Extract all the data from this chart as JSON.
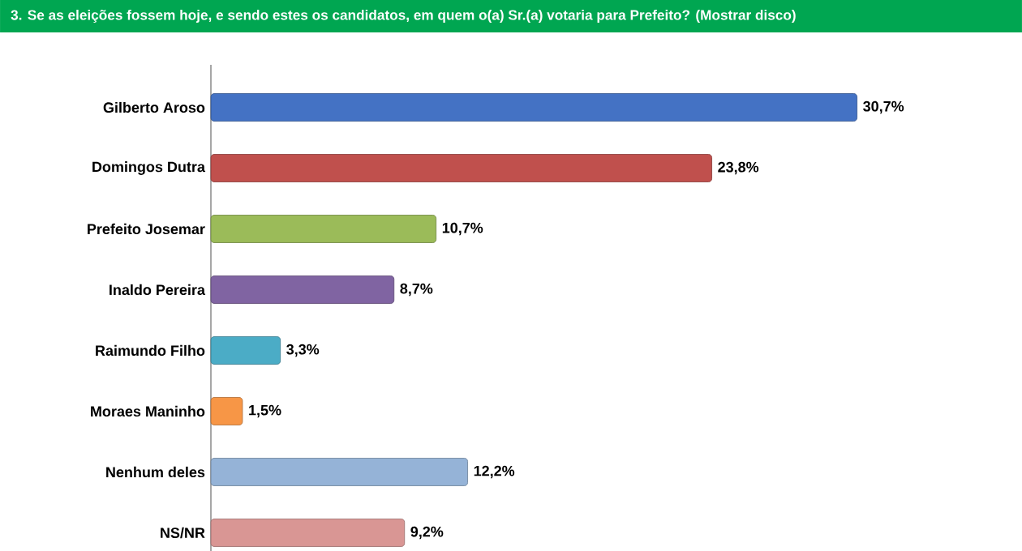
{
  "chart_data": {
    "type": "bar",
    "orientation": "horizontal",
    "title": "3. Se as eleições fossem hoje, e sendo estes os candidatos, em quem o(a) Sr.(a) votaria para Prefeito? (Mostrar disco)",
    "categories": [
      "Gilberto Aroso",
      "Domingos Dutra",
      "Prefeito Josemar",
      "Inaldo Pereira",
      "Raimundo Filho",
      "Moraes Maninho",
      "Nenhum deles",
      "NS/NR"
    ],
    "values": [
      30.7,
      23.8,
      10.7,
      8.7,
      3.3,
      1.5,
      12.2,
      9.2
    ],
    "value_labels": [
      "30,7%",
      "23,8%",
      "10,7%",
      "8,7%",
      "3,3%",
      "1,5%",
      "12,2%",
      "9,2%"
    ],
    "colors": [
      "#4472c4",
      "#c0504d",
      "#9bbb59",
      "#8064a2",
      "#4bacc6",
      "#f79646",
      "#95b3d7",
      "#d99694"
    ]
  }
}
